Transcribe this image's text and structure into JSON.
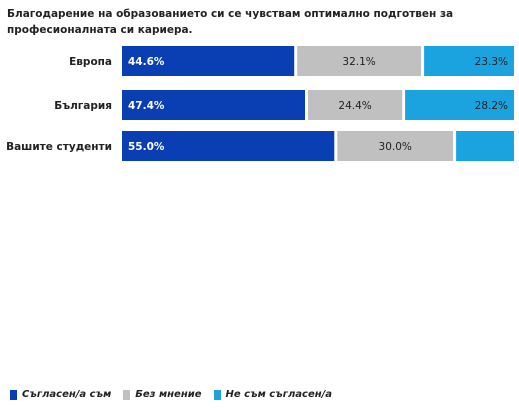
{
  "chart_data": {
    "type": "bar",
    "orientation": "horizontal",
    "stacked": true,
    "title": "Благодарение на образованието си се чувствам оптимално подготвен за професионалната си кариера.",
    "categories": [
      "Европа",
      "България",
      "Вашите студенти"
    ],
    "series": [
      {
        "name": "Съгласен/а съм",
        "values": [
          44.6,
          47.4,
          55.0
        ],
        "labels": [
          "44.6%",
          "47.4%",
          "55.0%"
        ],
        "color": "#0a3fb4",
        "label_color": "#ffffff"
      },
      {
        "name": "Без мнение",
        "values": [
          32.1,
          24.4,
          30.0
        ],
        "labels": [
          "32.1%",
          "24.4%",
          "30.0%"
        ],
        "color": "#c0c0c0",
        "label_color": "#222222"
      },
      {
        "name": "Не съм съгласен/а",
        "values": [
          23.3,
          28.2,
          15.0
        ],
        "labels": [
          "23.3%",
          "28.2%",
          ""
        ],
        "color": "#1ba3e0",
        "label_color": "#222222"
      }
    ],
    "xlim": [
      0,
      100
    ],
    "grid": false,
    "legend_position": "bottom-left"
  }
}
